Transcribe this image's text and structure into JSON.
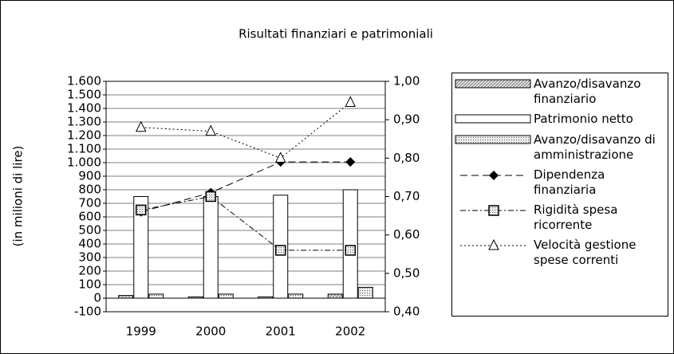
{
  "chart_data": {
    "type": "combo",
    "title": "Risultati finanziari e patrimoniali",
    "y_label": "(in milioni di lire)",
    "categories": [
      "1999",
      "2000",
      "2001",
      "2002"
    ],
    "ylim": [
      -100,
      1600
    ],
    "yticks": [
      -100,
      0,
      100,
      200,
      300,
      400,
      500,
      600,
      700,
      800,
      900,
      {
        "value": 1000,
        "label": "1.000"
      },
      {
        "value": 1100,
        "label": "1.100"
      },
      {
        "value": 1200,
        "label": "1.200"
      },
      {
        "value": 1300,
        "label": "1.300"
      },
      {
        "value": 1400,
        "label": "1.400"
      },
      {
        "value": 1500,
        "label": "1.500"
      },
      {
        "value": 1600,
        "label": "1.600"
      }
    ],
    "y2lim": [
      0.4,
      1.0
    ],
    "y2ticks": [
      {
        "value": 0.4,
        "label": "0,40"
      },
      {
        "value": 0.5,
        "label": "0,50"
      },
      {
        "value": 0.6,
        "label": "0,60"
      },
      {
        "value": 0.7,
        "label": "0,70"
      },
      {
        "value": 0.8,
        "label": "0,80"
      },
      {
        "value": 0.9,
        "label": "0,90"
      },
      {
        "value": 1.0,
        "label": "1,00"
      }
    ],
    "grid": true,
    "legend": "right",
    "series": [
      {
        "name": "Avanzo/disavanzo finanziario",
        "type": "bar",
        "color": "#d8d8d8",
        "pattern": "hatched",
        "values": [
          20,
          10,
          10,
          30
        ]
      },
      {
        "name": "Patrimonio netto",
        "type": "bar",
        "color": "#ffffff",
        "pattern": "none",
        "values": [
          750,
          750,
          760,
          800
        ]
      },
      {
        "name": "Avanzo/disavanzo di amministrazione",
        "type": "bar",
        "color": "#e0e0e0",
        "pattern": "dotted",
        "values": [
          30,
          30,
          30,
          80
        ]
      },
      {
        "name": "Dipendenza finanziaria",
        "type": "line",
        "axis": "y2",
        "color": "#000000",
        "line_style": "dashed",
        "marker": "diamond",
        "values": [
          0.66,
          0.71,
          0.79,
          0.79
        ]
      },
      {
        "name": "Rigidità spesa ricorrente",
        "type": "line",
        "axis": "y2",
        "color": "#000000",
        "line_style": "dashdot",
        "marker": "square",
        "values": [
          0.665,
          0.7,
          0.56,
          0.56
        ]
      },
      {
        "name": "Velocità gestione spese correnti",
        "type": "line",
        "axis": "y2",
        "color": "#000000",
        "line_style": "dotted",
        "marker": "triangle",
        "values": [
          0.88,
          0.87,
          0.8,
          0.945
        ]
      }
    ]
  }
}
